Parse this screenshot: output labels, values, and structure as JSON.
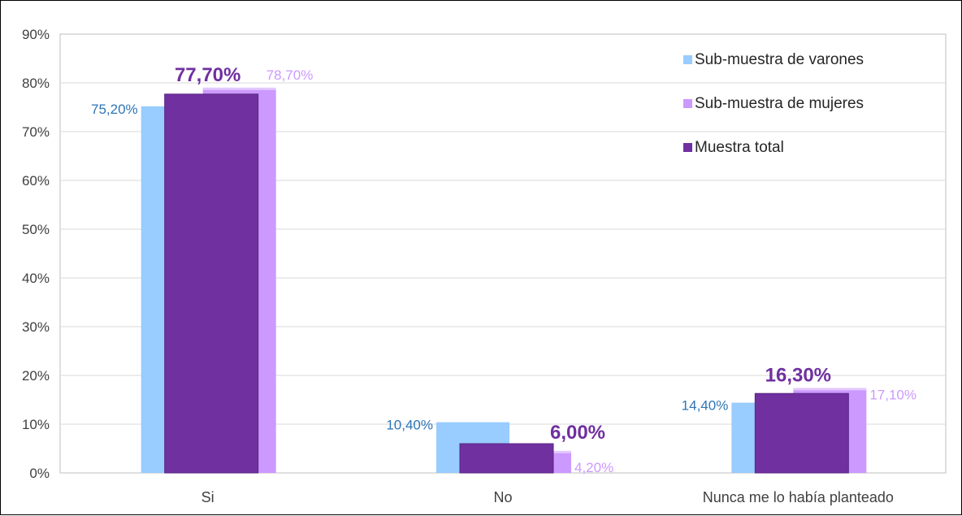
{
  "chart_data": {
    "type": "bar",
    "categories": [
      "Si",
      "No",
      "Nunca me lo había planteado"
    ],
    "series": [
      {
        "name": "Sub-muestra de varones",
        "values": [
          75.2,
          10.4,
          14.4
        ],
        "labels": [
          "75,20%",
          "10,40%",
          "14,40%"
        ],
        "color": "#99ccff",
        "label_color": "#2e75b6"
      },
      {
        "name": "Sub-muestra de mujeres",
        "values": [
          78.7,
          4.2,
          17.1
        ],
        "labels": [
          "78,70%",
          "4,20%",
          "17,10%"
        ],
        "color": "#cc99ff",
        "label_color": "#cc99ff"
      },
      {
        "name": "Muestra total",
        "values": [
          77.7,
          6.0,
          16.3
        ],
        "labels": [
          "77,70%",
          "6,00%",
          "16,30%"
        ],
        "color": "#7030a0",
        "label_color": "#7030a0"
      }
    ],
    "y_ticks": [
      "0%",
      "10%",
      "20%",
      "30%",
      "40%",
      "50%",
      "60%",
      "70%",
      "80%",
      "90%"
    ],
    "ylim": [
      0,
      90
    ],
    "grid": true,
    "legend_position": "top-right"
  }
}
